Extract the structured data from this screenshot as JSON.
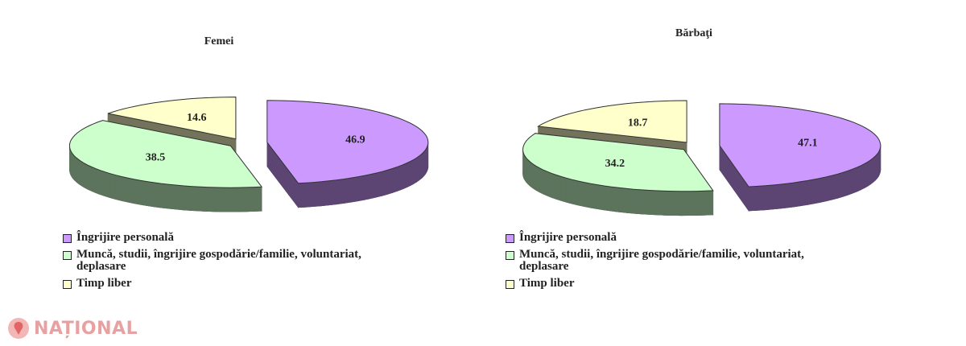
{
  "chart_data": [
    {
      "type": "pie",
      "title": "Femei",
      "categories": [
        "Îngrijire personală",
        "Muncă, studii, îngrijire gospodărie/familie, voluntariat, deplasare",
        "Timp liber"
      ],
      "values": [
        46.9,
        38.5,
        14.6
      ],
      "colors": [
        "#cc99ff",
        "#ccffcc",
        "#ffffcc"
      ]
    },
    {
      "type": "pie",
      "title": "Bărbaţi",
      "categories": [
        "Îngrijire personală",
        "Muncă, studii, îngrijire gospodărie/familie, voluntariat, deplasare",
        "Timp liber"
      ],
      "values": [
        47.1,
        34.2,
        18.7
      ],
      "colors": [
        "#cc99ff",
        "#ccffcc",
        "#ffffcc"
      ]
    }
  ],
  "watermark": "NAȚIONAL"
}
